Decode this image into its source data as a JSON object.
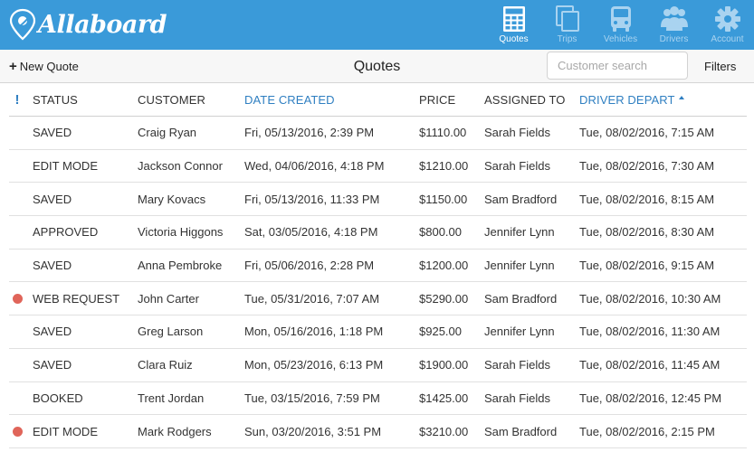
{
  "app": {
    "name": "Allaboard",
    "accent": "#3a9ad9",
    "nav": [
      {
        "label": "Quotes",
        "icon": "calculator-icon",
        "active": true
      },
      {
        "label": "Trips",
        "icon": "copy-icon",
        "active": false
      },
      {
        "label": "Vehicles",
        "icon": "bus-icon",
        "active": false
      },
      {
        "label": "Drivers",
        "icon": "users-icon",
        "active": false
      },
      {
        "label": "Account",
        "icon": "gear-icon",
        "active": false
      }
    ]
  },
  "toolbar": {
    "new_quote_label": "New Quote",
    "title": "Quotes",
    "search_placeholder": "Customer search",
    "search_value": "",
    "filters_label": "Filters"
  },
  "table": {
    "columns": {
      "flag": "!",
      "status": "STATUS",
      "customer": "CUSTOMER",
      "date_created": "DATE CREATED",
      "price": "PRICE",
      "assigned_to": "ASSIGNED TO",
      "driver_depart": "DRIVER DEPART"
    },
    "sorted_by": "driver_depart",
    "sort_direction": "ascending",
    "rows": [
      {
        "flag": false,
        "status": "SAVED",
        "customer": "Craig Ryan",
        "date_created": "Fri, 05/13/2016, 2:39 PM",
        "price": "$1110.00",
        "assigned_to": "Sarah Fields",
        "driver_depart": "Tue, 08/02/2016, 7:15 AM"
      },
      {
        "flag": false,
        "status": "EDIT MODE",
        "customer": "Jackson Connor",
        "date_created": "Wed, 04/06/2016, 4:18 PM",
        "price": "$1210.00",
        "assigned_to": "Sarah Fields",
        "driver_depart": "Tue, 08/02/2016, 7:30 AM"
      },
      {
        "flag": false,
        "status": "SAVED",
        "customer": "Mary Kovacs",
        "date_created": "Fri, 05/13/2016, 11:33 PM",
        "price": "$1150.00",
        "assigned_to": "Sam Bradford",
        "driver_depart": "Tue, 08/02/2016, 8:15 AM"
      },
      {
        "flag": false,
        "status": "APPROVED",
        "customer": "Victoria Higgons",
        "date_created": "Sat, 03/05/2016, 4:18 PM",
        "price": "$800.00",
        "assigned_to": "Jennifer Lynn",
        "driver_depart": "Tue, 08/02/2016, 8:30 AM"
      },
      {
        "flag": false,
        "status": "SAVED",
        "customer": "Anna Pembroke",
        "date_created": "Fri, 05/06/2016, 2:28 PM",
        "price": "$1200.00",
        "assigned_to": "Jennifer Lynn",
        "driver_depart": "Tue, 08/02/2016, 9:15 AM"
      },
      {
        "flag": true,
        "status": "WEB REQUEST",
        "customer": "John Carter",
        "date_created": "Tue, 05/31/2016, 7:07 AM",
        "price": "$5290.00",
        "assigned_to": "Sam Bradford",
        "driver_depart": "Tue, 08/02/2016, 10:30 AM"
      },
      {
        "flag": false,
        "status": "SAVED",
        "customer": "Greg Larson",
        "date_created": "Mon, 05/16/2016, 1:18 PM",
        "price": "$925.00",
        "assigned_to": "Jennifer Lynn",
        "driver_depart": "Tue, 08/02/2016, 11:30 AM"
      },
      {
        "flag": false,
        "status": "SAVED",
        "customer": "Clara Ruiz",
        "date_created": "Mon, 05/23/2016, 6:13 PM",
        "price": "$1900.00",
        "assigned_to": "Sarah Fields",
        "driver_depart": "Tue, 08/02/2016, 11:45 AM"
      },
      {
        "flag": false,
        "status": "BOOKED",
        "customer": "Trent Jordan",
        "date_created": "Tue, 03/15/2016, 7:59 PM",
        "price": "$1425.00",
        "assigned_to": "Sarah Fields",
        "driver_depart": "Tue, 08/02/2016, 12:45 PM"
      },
      {
        "flag": true,
        "status": "EDIT MODE",
        "customer": "Mark Rodgers",
        "date_created": "Sun, 03/20/2016, 3:51 PM",
        "price": "$3210.00",
        "assigned_to": "Sam Bradford",
        "driver_depart": "Tue, 08/02/2016, 2:15 PM"
      }
    ]
  }
}
